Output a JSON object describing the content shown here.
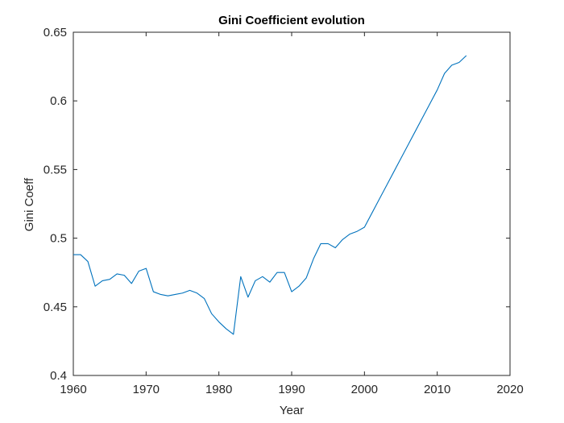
{
  "chart_data": {
    "type": "line",
    "title": "Gini Coefficient evolution",
    "xlabel": "Year",
    "ylabel": "Gini Coeff",
    "xlim": [
      1960,
      2020
    ],
    "ylim": [
      0.4,
      0.65
    ],
    "x_ticks": [
      1960,
      1970,
      1980,
      1990,
      2000,
      2010,
      2020
    ],
    "x_tick_labels": [
      "1960",
      "1970",
      "1980",
      "1990",
      "2000",
      "2010",
      "2020"
    ],
    "y_ticks": [
      0.4,
      0.45,
      0.5,
      0.55,
      0.6,
      0.65
    ],
    "y_tick_labels": [
      "0.4",
      "0.45",
      "0.5",
      "0.55",
      "0.6",
      "0.65"
    ],
    "grid": false,
    "series": [
      {
        "name": "Gini Coeff",
        "color": "#0072BD",
        "x": [
          1960,
          1961,
          1962,
          1963,
          1964,
          1965,
          1966,
          1967,
          1968,
          1969,
          1970,
          1971,
          1972,
          1973,
          1974,
          1975,
          1976,
          1977,
          1978,
          1979,
          1980,
          1981,
          1982,
          1983,
          1984,
          1985,
          1986,
          1987,
          1988,
          1989,
          1990,
          1991,
          1992,
          1993,
          1994,
          1995,
          1996,
          1997,
          1998,
          1999,
          2000,
          2001,
          2002,
          2003,
          2004,
          2005,
          2006,
          2007,
          2008,
          2009,
          2010,
          2011,
          2012,
          2013,
          2014
        ],
        "values": [
          0.488,
          0.488,
          0.483,
          0.465,
          0.469,
          0.47,
          0.474,
          0.473,
          0.467,
          0.476,
          0.478,
          0.461,
          0.459,
          0.458,
          0.459,
          0.46,
          0.462,
          0.46,
          0.456,
          0.445,
          0.439,
          0.434,
          0.43,
          0.472,
          0.457,
          0.469,
          0.472,
          0.468,
          0.475,
          0.475,
          0.461,
          0.465,
          0.471,
          0.485,
          0.496,
          0.496,
          0.493,
          0.499,
          0.503,
          0.505,
          0.508,
          0.518,
          0.528,
          0.538,
          0.548,
          0.558,
          0.568,
          0.578,
          0.588,
          0.598,
          0.608,
          0.62,
          0.626,
          0.628,
          0.633
        ]
      }
    ]
  }
}
